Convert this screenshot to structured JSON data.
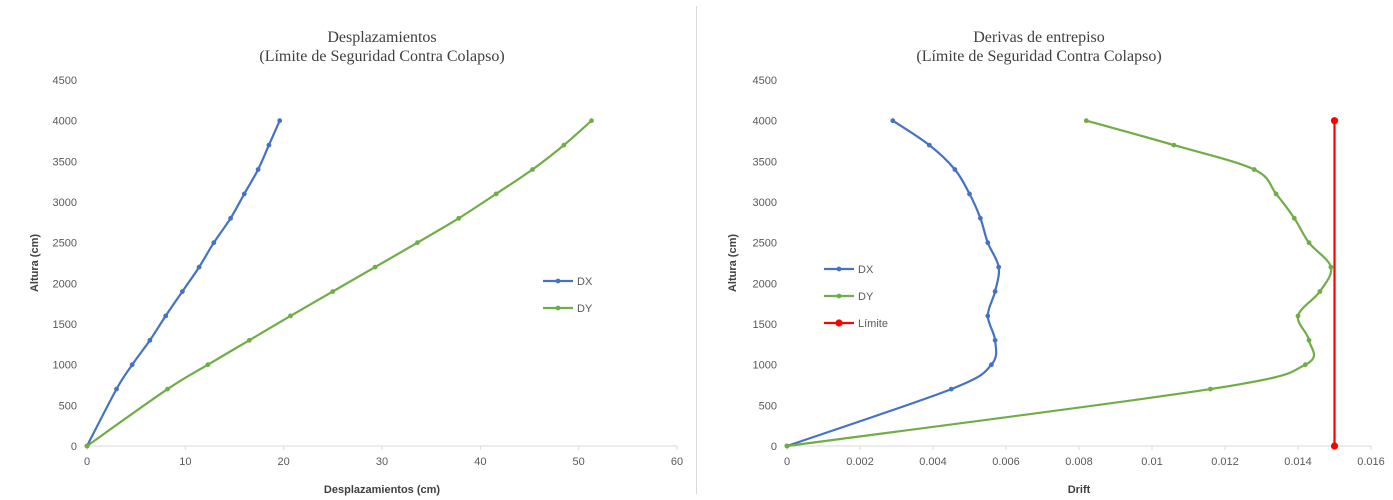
{
  "chart_data": [
    {
      "type": "line",
      "title": [
        "Desplazamientos",
        "(Límite de Seguridad Contra Colapso)"
      ],
      "xlabel": "Desplazamientos (cm)",
      "ylabel": "Altura (cm)",
      "xlim": [
        0,
        60
      ],
      "ylim": [
        0,
        4500
      ],
      "xticks": [
        0,
        10,
        20,
        30,
        40,
        50,
        60
      ],
      "yticks": [
        0,
        500,
        1000,
        1500,
        2000,
        2500,
        3000,
        3500,
        4000,
        4500
      ],
      "legend_position": "right",
      "series": [
        {
          "name": "DX",
          "color": "#4472C4",
          "x": [
            0,
            3.0,
            4.6,
            6.4,
            8.0,
            9.7,
            11.4,
            12.9,
            14.6,
            16.0,
            17.4,
            18.5,
            19.6
          ],
          "y": [
            0,
            700,
            1000,
            1300,
            1600,
            1900,
            2200,
            2500,
            2800,
            3100,
            3400,
            3700,
            4000
          ]
        },
        {
          "name": "DY",
          "color": "#70AD47",
          "x": [
            0,
            8.2,
            12.3,
            16.5,
            20.7,
            25.0,
            29.3,
            33.6,
            37.8,
            41.6,
            45.3,
            48.5,
            51.3
          ],
          "y": [
            0,
            700,
            1000,
            1300,
            1600,
            1900,
            2200,
            2500,
            2800,
            3100,
            3400,
            3700,
            4000
          ]
        }
      ]
    },
    {
      "type": "line",
      "title": [
        "Derivas de entrepiso",
        "(Límite de Seguridad Contra Colapso)"
      ],
      "xlabel": "Drift",
      "ylabel": "Altura (cm)",
      "xlim": [
        0,
        0.016
      ],
      "ylim": [
        0,
        4500
      ],
      "xticks": [
        0,
        0.002,
        0.004,
        0.006,
        0.008,
        0.01,
        0.012,
        0.014,
        0.016
      ],
      "yticks": [
        0,
        500,
        1000,
        1500,
        2000,
        2500,
        3000,
        3500,
        4000,
        4500
      ],
      "legend_position": "left",
      "series": [
        {
          "name": "DX",
          "color": "#4472C4",
          "x": [
            0,
            0.0045,
            0.0056,
            0.0057,
            0.0055,
            0.0057,
            0.0058,
            0.0055,
            0.0053,
            0.005,
            0.0046,
            0.0039,
            0.0029
          ],
          "y": [
            0,
            700,
            1000,
            1300,
            1600,
            1900,
            2200,
            2500,
            2800,
            3100,
            3400,
            3700,
            4000
          ]
        },
        {
          "name": "DY",
          "color": "#70AD47",
          "x": [
            0,
            0.0116,
            0.0142,
            0.0143,
            0.014,
            0.0146,
            0.0149,
            0.0143,
            0.0139,
            0.0134,
            0.0128,
            0.0106,
            0.0082
          ],
          "y": [
            0,
            700,
            1000,
            1300,
            1600,
            1900,
            2200,
            2500,
            2800,
            3100,
            3400,
            3700,
            4000
          ]
        },
        {
          "name": "Límite",
          "color": "#FF0000",
          "x": [
            0.015,
            0.015
          ],
          "y": [
            0,
            4000
          ]
        }
      ]
    }
  ]
}
